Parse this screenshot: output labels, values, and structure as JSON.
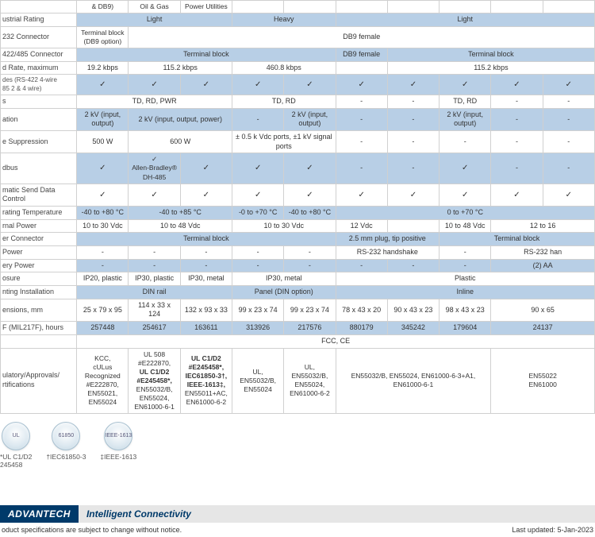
{
  "table": {
    "col_widths_pct": [
      14,
      9.5,
      9.5,
      9.5,
      9.5,
      9.5,
      9.5,
      9.5,
      9.5,
      9.5,
      9.5
    ],
    "rows": [
      {
        "class": "lightrow",
        "cells": [
          {
            "text": "",
            "cls": "rowlabel"
          },
          {
            "text": "& DB9)",
            "cls": "smalltxt"
          },
          {
            "text": "Oil & Gas",
            "cls": "smalltxt"
          },
          {
            "text": "Power Utilities",
            "cls": "smalltxt"
          },
          {
            "text": ""
          },
          {
            "text": ""
          },
          {
            "text": ""
          },
          {
            "text": ""
          },
          {
            "text": ""
          },
          {
            "text": ""
          },
          {
            "text": ""
          }
        ]
      },
      {
        "class": "blueband",
        "cells": [
          {
            "bind": "labels.industrial",
            "cls": "rowlabel"
          },
          {
            "bind": "vals.light",
            "colspan": 3
          },
          {
            "bind": "vals.heavy",
            "colspan": 2
          },
          {
            "bind": "vals.light",
            "colspan": 5
          }
        ]
      },
      {
        "class": "lightrow",
        "cells": [
          {
            "bind": "labels.rs232",
            "cls": "rowlabel"
          },
          {
            "bind": "vals.termblock_db9",
            "cls": "smalltxt"
          },
          {
            "bind": "vals.db9female",
            "colspan": 9
          }
        ]
      },
      {
        "class": "blueband",
        "cells": [
          {
            "bind": "labels.rs422",
            "cls": "rowlabel"
          },
          {
            "bind": "vals.termblock",
            "colspan": 5
          },
          {
            "bind": "vals.db9female"
          },
          {
            "bind": "vals.termblock",
            "colspan": 4
          }
        ]
      },
      {
        "class": "lightrow",
        "cells": [
          {
            "bind": "labels.baud",
            "cls": "rowlabel"
          },
          {
            "bind": "vals.b19"
          },
          {
            "bind": "vals.b115",
            "colspan": 2
          },
          {
            "bind": "vals.b460",
            "colspan": 2
          },
          {
            "text": ""
          },
          {
            "bind": "vals.b115",
            "colspan": 4
          }
        ]
      },
      {
        "class": "blueband",
        "cells": [
          {
            "bind": "labels.modes",
            "cls": "rowlabel sub"
          },
          {
            "text": "✓",
            "cls": "check"
          },
          {
            "text": "✓",
            "cls": "check"
          },
          {
            "text": "✓",
            "cls": "check"
          },
          {
            "text": "✓",
            "cls": "check"
          },
          {
            "text": "✓",
            "cls": "check"
          },
          {
            "text": "✓",
            "cls": "check"
          },
          {
            "text": "✓",
            "cls": "check"
          },
          {
            "text": "✓",
            "cls": "check"
          },
          {
            "text": "✓",
            "cls": "check"
          },
          {
            "text": "✓",
            "cls": "check"
          }
        ]
      },
      {
        "class": "lightrow",
        "cells": [
          {
            "bind": "labels.leds",
            "cls": "rowlabel"
          },
          {
            "bind": "vals.tdrdpwr",
            "colspan": 3
          },
          {
            "bind": "vals.tdrd",
            "colspan": 2
          },
          {
            "bind": "vals.dash"
          },
          {
            "bind": "vals.dash"
          },
          {
            "bind": "vals.tdrd"
          },
          {
            "bind": "vals.dash"
          },
          {
            "bind": "vals.dash"
          }
        ]
      },
      {
        "class": "blueband",
        "cells": [
          {
            "bind": "labels.isolation",
            "cls": "rowlabel"
          },
          {
            "bind": "vals.kv_io"
          },
          {
            "bind": "vals.kv_iop",
            "colspan": 2
          },
          {
            "bind": "vals.dash"
          },
          {
            "bind": "vals.kv_io"
          },
          {
            "bind": "vals.dash"
          },
          {
            "bind": "vals.dash"
          },
          {
            "bind": "vals.kv_io"
          },
          {
            "bind": "vals.dash"
          },
          {
            "bind": "vals.dash"
          }
        ]
      },
      {
        "class": "lightrow",
        "cells": [
          {
            "bind": "labels.surge",
            "cls": "rowlabel"
          },
          {
            "bind": "vals.w500"
          },
          {
            "bind": "vals.w600",
            "colspan": 2
          },
          {
            "bind": "vals.surge_ports",
            "colspan": 2
          },
          {
            "bind": "vals.dash"
          },
          {
            "bind": "vals.dash"
          },
          {
            "bind": "vals.dash"
          },
          {
            "bind": "vals.dash"
          },
          {
            "bind": "vals.dash"
          }
        ]
      },
      {
        "class": "blueband",
        "cells": [
          {
            "bind": "labels.modbus",
            "cls": "rowlabel"
          },
          {
            "text": "✓",
            "cls": "check"
          },
          {
            "bind": "vals.ab_dh",
            "cls": "smalltxt"
          },
          {
            "text": "✓",
            "cls": "check"
          },
          {
            "text": "✓",
            "cls": "check"
          },
          {
            "text": "✓",
            "cls": "check"
          },
          {
            "bind": "vals.dash"
          },
          {
            "bind": "vals.dash"
          },
          {
            "text": "✓",
            "cls": "check"
          },
          {
            "bind": "vals.dash"
          },
          {
            "bind": "vals.dash"
          }
        ]
      },
      {
        "class": "lightrow",
        "cells": [
          {
            "bind": "labels.autosend",
            "cls": "rowlabel"
          },
          {
            "text": "✓",
            "cls": "check"
          },
          {
            "text": "✓",
            "cls": "check"
          },
          {
            "text": "✓",
            "cls": "check"
          },
          {
            "text": "✓",
            "cls": "check"
          },
          {
            "text": "✓",
            "cls": "check"
          },
          {
            "text": "✓",
            "cls": "check"
          },
          {
            "text": "✓",
            "cls": "check"
          },
          {
            "text": "✓",
            "cls": "check"
          },
          {
            "text": "✓",
            "cls": "check"
          },
          {
            "text": "✓",
            "cls": "check"
          }
        ]
      },
      {
        "class": "blueband",
        "cells": [
          {
            "bind": "labels.optemp",
            "cls": "rowlabel"
          },
          {
            "bind": "vals.t_40_80"
          },
          {
            "bind": "vals.t_40_85",
            "colspan": 2
          },
          {
            "bind": "vals.t_0_70"
          },
          {
            "bind": "vals.t_40_80"
          },
          {
            "bind": "vals.t_0_70p",
            "colspan": 5
          }
        ]
      },
      {
        "class": "lightrow",
        "cells": [
          {
            "bind": "labels.extpwr",
            "cls": "rowlabel"
          },
          {
            "bind": "vals.v10_30"
          },
          {
            "bind": "vals.v10_48",
            "colspan": 2
          },
          {
            "bind": "vals.v10_30",
            "colspan": 2
          },
          {
            "bind": "vals.v12"
          },
          {
            "text": ""
          },
          {
            "bind": "vals.v10_48"
          },
          {
            "bind": "vals.v12_16",
            "colspan": 2
          }
        ]
      },
      {
        "class": "blueband",
        "cells": [
          {
            "bind": "labels.pwrconn",
            "cls": "rowlabel"
          },
          {
            "bind": "vals.termblock",
            "colspan": 5
          },
          {
            "bind": "vals.plug25",
            "colspan": 2
          },
          {
            "bind": "vals.termblock",
            "colspan": 3
          }
        ]
      },
      {
        "class": "lightrow",
        "cells": [
          {
            "bind": "labels.portpwr",
            "cls": "rowlabel"
          },
          {
            "bind": "vals.dash"
          },
          {
            "bind": "vals.dash"
          },
          {
            "bind": "vals.dash"
          },
          {
            "bind": "vals.dash"
          },
          {
            "bind": "vals.dash"
          },
          {
            "bind": "vals.rs232hs",
            "colspan": 2
          },
          {
            "bind": "vals.dash"
          },
          {
            "bind": "vals.rs232han",
            "colspan": 2
          }
        ]
      },
      {
        "class": "blueband",
        "cells": [
          {
            "bind": "labels.battpwr",
            "cls": "rowlabel"
          },
          {
            "bind": "vals.dash"
          },
          {
            "bind": "vals.dash"
          },
          {
            "bind": "vals.dash"
          },
          {
            "bind": "vals.dash"
          },
          {
            "bind": "vals.dash"
          },
          {
            "bind": "vals.dash"
          },
          {
            "bind": "vals.dash"
          },
          {
            "bind": "vals.dash"
          },
          {
            "bind": "vals.aa2",
            "colspan": 2
          }
        ]
      },
      {
        "class": "lightrow",
        "cells": [
          {
            "bind": "labels.enclosure",
            "cls": "rowlabel"
          },
          {
            "bind": "vals.ip20p"
          },
          {
            "bind": "vals.ip30p"
          },
          {
            "bind": "vals.ip30m"
          },
          {
            "bind": "vals.ip30m",
            "colspan": 2
          },
          {
            "bind": "vals.plastic",
            "colspan": 5
          }
        ]
      },
      {
        "class": "blueband",
        "cells": [
          {
            "bind": "labels.mount",
            "cls": "rowlabel"
          },
          {
            "bind": "vals.dinrail",
            "colspan": 3
          },
          {
            "bind": "vals.paneldin",
            "colspan": 2
          },
          {
            "bind": "vals.inline",
            "colspan": 5
          }
        ]
      },
      {
        "class": "lightrow",
        "cells": [
          {
            "bind": "labels.dims",
            "cls": "rowlabel"
          },
          {
            "bind": "vals.d1"
          },
          {
            "bind": "vals.d2"
          },
          {
            "bind": "vals.d3"
          },
          {
            "bind": "vals.d4"
          },
          {
            "bind": "vals.d5"
          },
          {
            "bind": "vals.d6"
          },
          {
            "bind": "vals.d7"
          },
          {
            "bind": "vals.d8"
          },
          {
            "bind": "vals.d9",
            "colspan": 2
          }
        ]
      },
      {
        "class": "blueband",
        "cells": [
          {
            "bind": "labels.mtbf",
            "cls": "rowlabel"
          },
          {
            "bind": "vals.m1"
          },
          {
            "bind": "vals.m2"
          },
          {
            "bind": "vals.m3"
          },
          {
            "bind": "vals.m4"
          },
          {
            "bind": "vals.m5"
          },
          {
            "bind": "vals.m6"
          },
          {
            "bind": "vals.m7"
          },
          {
            "bind": "vals.m8"
          },
          {
            "bind": "vals.m9",
            "colspan": 2
          }
        ]
      },
      {
        "class": "lightrow",
        "cells": [
          {
            "text": "",
            "cls": "rowlabel"
          },
          {
            "bind": "vals.fccce",
            "colspan": 10
          }
        ]
      },
      {
        "class": "lightrow",
        "cells": [
          {
            "bind": "labels.regulatory",
            "cls": "rowlabel"
          },
          {
            "bind": "vals.reg1",
            "cls": "smalltxt"
          },
          {
            "bind": "vals.reg2",
            "cls": "smalltxt"
          },
          {
            "bind": "vals.reg3",
            "cls": "smalltxt"
          },
          {
            "bind": "vals.reg4",
            "cls": "smalltxt"
          },
          {
            "bind": "vals.reg5",
            "cls": "smalltxt"
          },
          {
            "bind": "vals.reg6",
            "colspan": 3,
            "cls": "smalltxt"
          },
          {
            "bind": "vals.reg7",
            "colspan": 2,
            "cls": "smalltxt"
          }
        ]
      }
    ]
  },
  "labels": {
    "industrial": "ustrial Rating",
    "rs232": "232 Connector",
    "rs422": "422/485 Connector",
    "baud": "d Rate, maximum",
    "modes": "des (RS-422 4-wire\n85 2 & 4 wire)",
    "leds": "s",
    "isolation": "ation",
    "surge": "e Suppression",
    "modbus": "dbus",
    "autosend": "matic Send Data Control",
    "optemp": "rating Temperature",
    "extpwr": "rnal Power",
    "pwrconn": "er Connector",
    "portpwr": " Power",
    "battpwr": "ery Power",
    "enclosure": "osure",
    "mount": "nting Installation",
    "dims": "ensions, mm",
    "mtbf": "F (MIL217F), hours",
    "regulatory": "ulatory/Approvals/\nrtifications"
  },
  "vals": {
    "light": "Light",
    "heavy": "Heavy",
    "termblock_db9": "Terminal block\n(DB9 option)",
    "db9female": "DB9 female",
    "termblock": "Terminal block",
    "b19": "19.2 kbps",
    "b115": "115.2 kbps",
    "b460": "460.8 kbps",
    "tdrdpwr": "TD, RD, PWR",
    "tdrd": "TD, RD",
    "dash": "-",
    "kv_io": "2 kV (input, output)",
    "kv_iop": "2 kV (input, output, power)",
    "w500": "500 W",
    "w600": "600 W",
    "surge_ports": "± 0.5 k Vdc ports, ±1 kV signal ports",
    "ab_dh": "✓\nAllen-Bradley®\nDH-485",
    "t_40_80": "-40 to +80 °C",
    "t_40_85": "-40 to +85 °C",
    "t_0_70": "-0 to +70 °C",
    "t_0_70p": "0 to +70 °C",
    "v10_30": "10 to 30 Vdc",
    "v10_48": "10 to 48 Vdc",
    "v12": "12 Vdc",
    "v12_16": "12 to 16",
    "plug25": "2.5 mm plug, tip positive",
    "rs232hs": "RS-232 handshake",
    "rs232han": "RS-232 han",
    "aa2": "(2) AA",
    "ip20p": "IP20, plastic",
    "ip30p": "IP30, plastic",
    "ip30m": "IP30, metal",
    "plastic": "Plastic",
    "dinrail": "DIN rail",
    "paneldin": "Panel (DIN option)",
    "inline": "Inline",
    "d1": "25 x 79 x 95",
    "d2": "114 x 33 x 124",
    "d3": "132 x 93 x 33",
    "d4": "99 x 23 x 74",
    "d5": "99 x 23 x 74",
    "d6": "78 x 43 x 20",
    "d7": "90 x 43 x 23",
    "d8": "98 x 43 x 23",
    "d9": "90 x 65",
    "m1": "257448",
    "m2": "254617",
    "m3": "163611",
    "m4": "313926",
    "m5": "217576",
    "m6": "880179",
    "m7": "345242",
    "m8": "179604",
    "m9": "24137",
    "fccce": "FCC, CE",
    "reg1": "KCC,\ncULus Recognized\n#E222870,\nEN55021,\nEN55024",
    "reg2": "UL 508 #E222870,\nUL C1/D2\n#E245458*,\nEN55032/B,\nEN55024,\nEN61000-6-1",
    "reg3": "UL C1/D2\n#E245458*,\nIEC61850-3†,\nIEEE-1613‡,\nEN55011+AC,\nEN61000-6-2",
    "reg4": "UL, EN55032/B,\nEN55024",
    "reg5": "UL,\nEN55032/B,\nEN55024,\nEN61000-6-2",
    "reg6": "EN55032/B, EN55024, EN61000-6-3+A1, EN61000-6-1",
    "reg7": "EN55022\nEN61000"
  },
  "certs": [
    {
      "badge": "UL",
      "label": "*UL C1/D2\n245458"
    },
    {
      "badge": "61850",
      "label": "†IEC61850-3"
    },
    {
      "badge": "IEEE-1613",
      "label": "‡IEEE-1613"
    }
  ],
  "footer": {
    "brand": "ADVANTECH",
    "tag": "Intelligent Connectivity",
    "note_left": "oduct specifications are subject to change without notice.",
    "note_right": "Last updated: 5-Jan-2023"
  },
  "colors": {
    "blueband": "#b8cfe6",
    "border": "#d0d0d0",
    "footer_dark": "#003a6a",
    "footer_light": "#e6e6e6"
  }
}
